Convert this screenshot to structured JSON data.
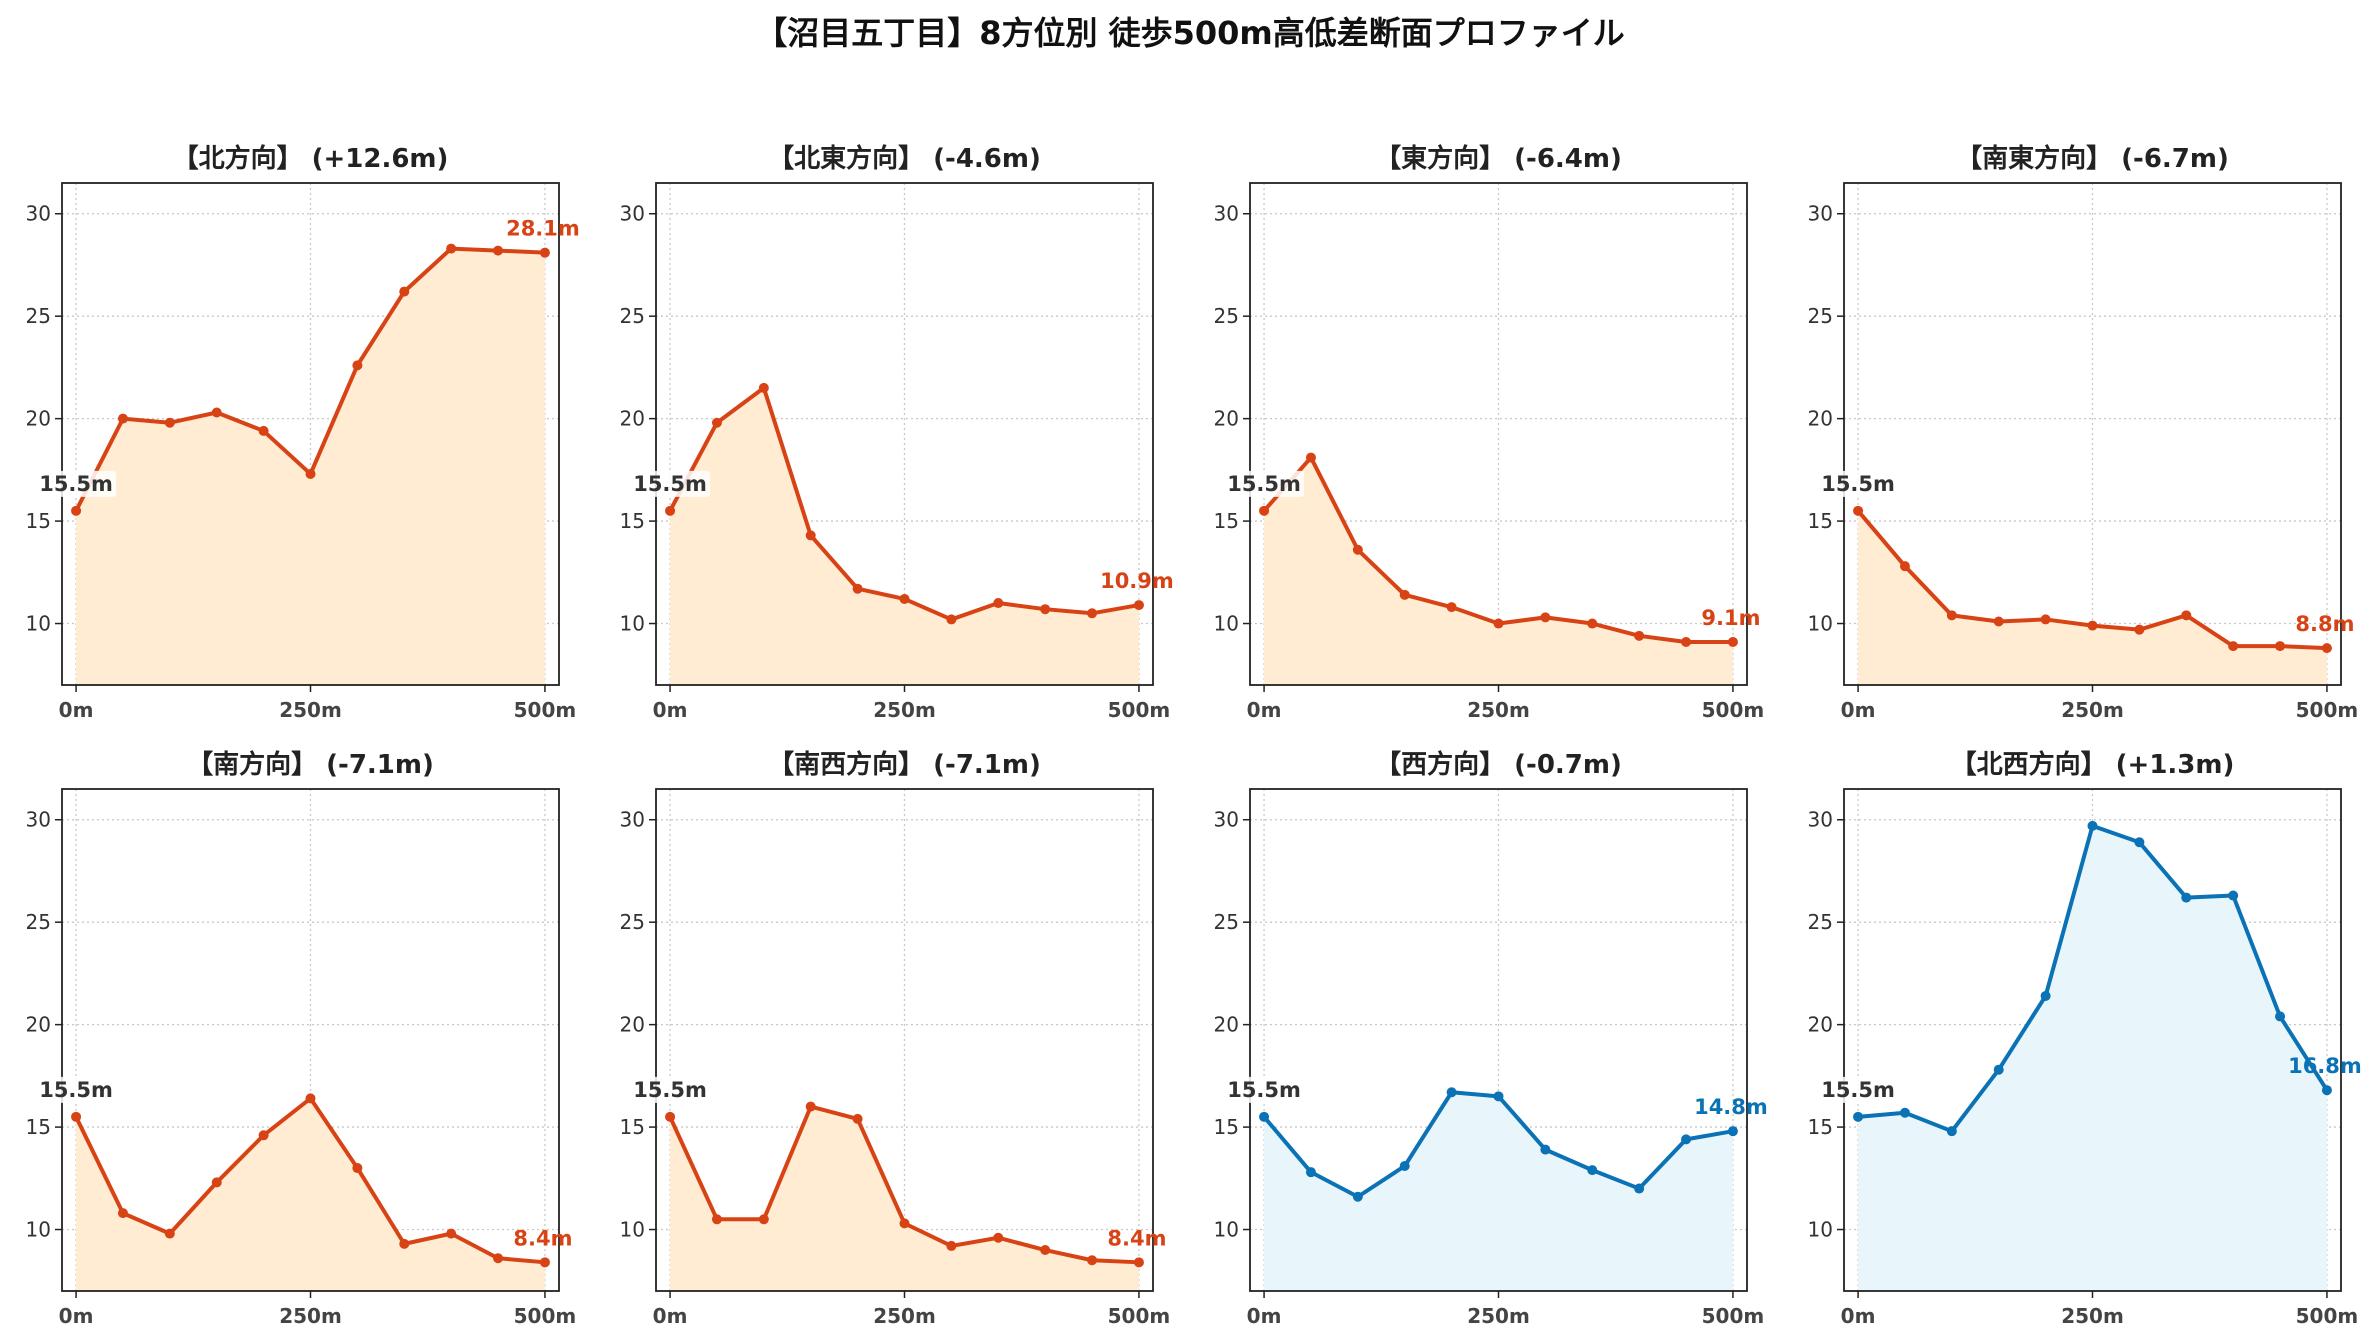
{
  "figure": {
    "title": "【沼目五丁目】8方位別 徒歩500m高低差断面プロファイル"
  },
  "colors": {
    "down": "#d84315",
    "down_fill": "#ffecd2",
    "up": "#0a72b5",
    "up_fill": "#e8f6fc"
  },
  "chart_data": [
    {
      "type": "area",
      "title": "【北方向】 (+12.6m)",
      "color_scheme": "down",
      "x": [
        0,
        50,
        100,
        150,
        200,
        250,
        300,
        350,
        400,
        450,
        500
      ],
      "y": [
        15.5,
        20.0,
        19.8,
        20.3,
        19.4,
        17.3,
        22.6,
        26.2,
        28.3,
        28.2,
        28.1
      ],
      "xticks": [
        "0m",
        "250m",
        "500m"
      ],
      "yticks": [
        10,
        15,
        20,
        25,
        30
      ],
      "ylim": [
        7,
        31.5
      ],
      "xlim": [
        -15,
        515
      ],
      "grid": true,
      "start_label": "15.5m",
      "end_label": "28.1m"
    },
    {
      "type": "area",
      "title": "【北東方向】 (-4.6m)",
      "color_scheme": "down",
      "x": [
        0,
        50,
        100,
        150,
        200,
        250,
        300,
        350,
        400,
        450,
        500
      ],
      "y": [
        15.5,
        19.8,
        21.5,
        14.3,
        11.7,
        11.2,
        10.2,
        11.0,
        10.7,
        10.5,
        10.9
      ],
      "xticks": [
        "0m",
        "250m",
        "500m"
      ],
      "yticks": [
        10,
        15,
        20,
        25,
        30
      ],
      "ylim": [
        7,
        31.5
      ],
      "xlim": [
        -15,
        515
      ],
      "grid": true,
      "start_label": "15.5m",
      "end_label": "10.9m"
    },
    {
      "type": "area",
      "title": "【東方向】 (-6.4m)",
      "color_scheme": "down",
      "x": [
        0,
        50,
        100,
        150,
        200,
        250,
        300,
        350,
        400,
        450,
        500
      ],
      "y": [
        15.5,
        18.1,
        13.6,
        11.4,
        10.8,
        10.0,
        10.3,
        10.0,
        9.4,
        9.1,
        9.1
      ],
      "xticks": [
        "0m",
        "250m",
        "500m"
      ],
      "yticks": [
        10,
        15,
        20,
        25,
        30
      ],
      "ylim": [
        7,
        31.5
      ],
      "xlim": [
        -15,
        515
      ],
      "grid": true,
      "start_label": "15.5m",
      "end_label": "9.1m"
    },
    {
      "type": "area",
      "title": "【南東方向】 (-6.7m)",
      "color_scheme": "down",
      "x": [
        0,
        50,
        100,
        150,
        200,
        250,
        300,
        350,
        400,
        450,
        500
      ],
      "y": [
        15.5,
        12.8,
        10.4,
        10.1,
        10.2,
        9.9,
        9.7,
        10.4,
        8.9,
        8.9,
        8.8
      ],
      "xticks": [
        "0m",
        "250m",
        "500m"
      ],
      "yticks": [
        10,
        15,
        20,
        25,
        30
      ],
      "ylim": [
        7,
        31.5
      ],
      "xlim": [
        -15,
        515
      ],
      "grid": true,
      "start_label": "15.5m",
      "end_label": "8.8m"
    },
    {
      "type": "area",
      "title": "【南方向】 (-7.1m)",
      "color_scheme": "down",
      "x": [
        0,
        50,
        100,
        150,
        200,
        250,
        300,
        350,
        400,
        450,
        500
      ],
      "y": [
        15.5,
        10.8,
        9.8,
        12.3,
        14.6,
        16.4,
        13.0,
        9.3,
        9.8,
        8.6,
        8.4
      ],
      "xticks": [
        "0m",
        "250m",
        "500m"
      ],
      "yticks": [
        10,
        15,
        20,
        25,
        30
      ],
      "ylim": [
        7,
        31.5
      ],
      "xlim": [
        -15,
        515
      ],
      "grid": true,
      "start_label": "15.5m",
      "end_label": "8.4m"
    },
    {
      "type": "area",
      "title": "【南西方向】 (-7.1m)",
      "color_scheme": "down",
      "x": [
        0,
        50,
        100,
        150,
        200,
        250,
        300,
        350,
        400,
        450,
        500
      ],
      "y": [
        15.5,
        10.5,
        10.5,
        16.0,
        15.4,
        10.3,
        9.2,
        9.6,
        9.0,
        8.5,
        8.4
      ],
      "xticks": [
        "0m",
        "250m",
        "500m"
      ],
      "yticks": [
        10,
        15,
        20,
        25,
        30
      ],
      "ylim": [
        7,
        31.5
      ],
      "xlim": [
        -15,
        515
      ],
      "grid": true,
      "start_label": "15.5m",
      "end_label": "8.4m"
    },
    {
      "type": "area",
      "title": "【西方向】 (-0.7m)",
      "color_scheme": "up",
      "x": [
        0,
        50,
        100,
        150,
        200,
        250,
        300,
        350,
        400,
        450,
        500
      ],
      "y": [
        15.5,
        12.8,
        11.6,
        13.1,
        16.7,
        16.5,
        13.9,
        12.9,
        12.0,
        14.4,
        14.8
      ],
      "xticks": [
        "0m",
        "250m",
        "500m"
      ],
      "yticks": [
        10,
        15,
        20,
        25,
        30
      ],
      "ylim": [
        7,
        31.5
      ],
      "xlim": [
        -15,
        515
      ],
      "grid": true,
      "start_label": "15.5m",
      "end_label": "14.8m"
    },
    {
      "type": "area",
      "title": "【北西方向】 (+1.3m)",
      "color_scheme": "up",
      "x": [
        0,
        50,
        100,
        150,
        200,
        250,
        300,
        350,
        400,
        450,
        500
      ],
      "y": [
        15.5,
        15.7,
        14.8,
        17.8,
        21.4,
        29.7,
        28.9,
        26.2,
        26.3,
        20.4,
        16.8
      ],
      "xticks": [
        "0m",
        "250m",
        "500m"
      ],
      "yticks": [
        10,
        15,
        20,
        25,
        30
      ],
      "ylim": [
        7,
        31.5
      ],
      "xlim": [
        -15,
        515
      ],
      "grid": true,
      "start_label": "15.5m",
      "end_label": "16.8m"
    }
  ]
}
